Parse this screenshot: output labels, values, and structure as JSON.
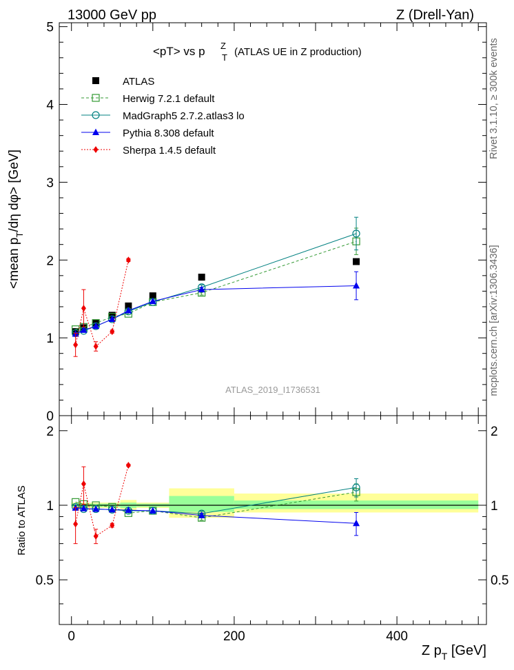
{
  "header": {
    "left": "13000 GeV pp",
    "right": "Z (Drell-Yan)"
  },
  "side_labels": {
    "rivet": "Rivet 3.1.10, ≥ 300k events",
    "mcplots": "mcplots.cern.ch [arXiv:1306.3436]"
  },
  "chart_data": [
    {
      "type": "scatter",
      "title": "<pT> vs p_T^Z (ATLAS UE in Z production)",
      "analysis_id": "ATLAS_2019_I1736531",
      "ylabel": "<mean p_T/dη dφ> [GeV]",
      "xlabel": "Z p_T [GeV]",
      "xlim": [
        -15,
        510
      ],
      "ylim": [
        0,
        5.05
      ],
      "y_ticks": [
        "0",
        "1",
        "2",
        "3",
        "4",
        "5"
      ],
      "legend_position": "top-left",
      "series": [
        {
          "name": "ATLAS",
          "color": "#000000",
          "marker": "filled-square",
          "x": [
            5,
            15,
            30,
            50,
            70,
            100,
            160,
            350
          ],
          "y": [
            1.08,
            1.13,
            1.19,
            1.29,
            1.41,
            1.54,
            1.78,
            1.98
          ]
        },
        {
          "name": "Herwig 7.2.1 default",
          "color": "#339933",
          "marker": "open-square",
          "line": "dashed",
          "x": [
            5,
            15,
            30,
            50,
            70,
            100,
            160,
            350
          ],
          "y": [
            1.11,
            1.14,
            1.19,
            1.27,
            1.31,
            1.46,
            1.58,
            2.24
          ],
          "err": [
            0,
            0,
            0,
            0,
            0,
            0,
            0.03,
            0.17
          ]
        },
        {
          "name": "MadGraph5 2.7.2.atlas3 lo",
          "color": "#008080",
          "marker": "open-circle",
          "line": "solid",
          "x": [
            5,
            15,
            30,
            50,
            70,
            100,
            160,
            350
          ],
          "y": [
            1.06,
            1.09,
            1.15,
            1.24,
            1.34,
            1.46,
            1.65,
            2.34
          ],
          "err": [
            0,
            0,
            0,
            0,
            0,
            0,
            0.03,
            0.21
          ]
        },
        {
          "name": "Pythia 8.308 default",
          "color": "#0000ee",
          "marker": "filled-triangle",
          "line": "solid",
          "x": [
            5,
            15,
            30,
            50,
            70,
            100,
            160,
            350
          ],
          "y": [
            1.05,
            1.1,
            1.15,
            1.24,
            1.35,
            1.47,
            1.62,
            1.67
          ],
          "err": [
            0,
            0,
            0,
            0,
            0,
            0,
            0.03,
            0.18
          ]
        },
        {
          "name": "Sherpa 1.4.5 default",
          "color": "#ee0000",
          "marker": "filled-diamond",
          "line": "dotted",
          "x": [
            5,
            15,
            30,
            50,
            70
          ],
          "y": [
            0.91,
            1.38,
            0.89,
            1.08,
            2.0
          ],
          "err": [
            0.15,
            0.24,
            0.06,
            0.02,
            0.02
          ]
        }
      ]
    },
    {
      "type": "scatter",
      "ylabel": "Ratio to ATLAS",
      "xlabel": "Z p_T [GeV]",
      "xlim": [
        -15,
        510
      ],
      "ylim": [
        0.33,
        2.3
      ],
      "y_ticks": [
        "0.5",
        "1",
        "2"
      ],
      "x_ticks": [
        "0",
        "200",
        "400"
      ],
      "uncertainty_bands": [
        {
          "x": [
            0,
            10
          ],
          "yellow": [
            0.975,
            1.025
          ],
          "green": [
            0.985,
            1.015
          ]
        },
        {
          "x": [
            10,
            20
          ],
          "yellow": [
            0.975,
            1.025
          ],
          "green": [
            0.985,
            1.015
          ]
        },
        {
          "x": [
            20,
            40
          ],
          "yellow": [
            0.975,
            1.025
          ],
          "green": [
            0.985,
            1.015
          ]
        },
        {
          "x": [
            40,
            60
          ],
          "yellow": [
            0.975,
            1.025
          ],
          "green": [
            0.985,
            1.015
          ]
        },
        {
          "x": [
            60,
            80
          ],
          "yellow": [
            0.95,
            1.05
          ],
          "green": [
            0.975,
            1.025
          ]
        },
        {
          "x": [
            80,
            120
          ],
          "yellow": [
            0.975,
            1.025
          ],
          "green": [
            0.985,
            1.015
          ]
        },
        {
          "x": [
            120,
            200
          ],
          "yellow": [
            0.89,
            1.17
          ],
          "green": [
            0.94,
            1.09
          ]
        },
        {
          "x": [
            200,
            500
          ],
          "yellow": [
            0.935,
            1.115
          ],
          "green": [
            0.965,
            1.045
          ]
        }
      ],
      "series": [
        {
          "name": "Herwig 7.2.1 default",
          "color": "#339933",
          "marker": "open-square",
          "line": "dashed",
          "x": [
            5,
            15,
            30,
            50,
            70,
            100,
            160,
            350
          ],
          "y": [
            1.03,
            1.01,
            1.0,
            0.985,
            0.93,
            0.95,
            0.89,
            1.13
          ],
          "err": [
            0,
            0,
            0,
            0,
            0,
            0,
            0.02,
            0.09
          ]
        },
        {
          "name": "MadGraph5 2.7.2.atlas3 lo",
          "color": "#008080",
          "marker": "open-circle",
          "line": "solid",
          "x": [
            5,
            15,
            30,
            50,
            70,
            100,
            160,
            350
          ],
          "y": [
            0.985,
            0.965,
            0.965,
            0.96,
            0.95,
            0.95,
            0.925,
            1.18
          ],
          "err": [
            0,
            0,
            0,
            0,
            0,
            0,
            0.02,
            0.1
          ]
        },
        {
          "name": "Pythia 8.308 default",
          "color": "#0000ee",
          "marker": "filled-triangle",
          "line": "solid",
          "x": [
            5,
            15,
            30,
            50,
            70,
            100,
            160,
            350
          ],
          "y": [
            0.975,
            0.97,
            0.965,
            0.96,
            0.955,
            0.95,
            0.91,
            0.845
          ],
          "err": [
            0,
            0,
            0,
            0,
            0,
            0,
            0.02,
            0.09
          ]
        },
        {
          "name": "Sherpa 1.4.5 default",
          "color": "#ee0000",
          "marker": "filled-diamond",
          "line": "dotted",
          "x": [
            5,
            15,
            30,
            50,
            70
          ],
          "y": [
            0.84,
            1.22,
            0.75,
            0.83,
            1.45
          ],
          "err": [
            0.14,
            0.21,
            0.05,
            0.015,
            0.015
          ]
        }
      ]
    }
  ]
}
